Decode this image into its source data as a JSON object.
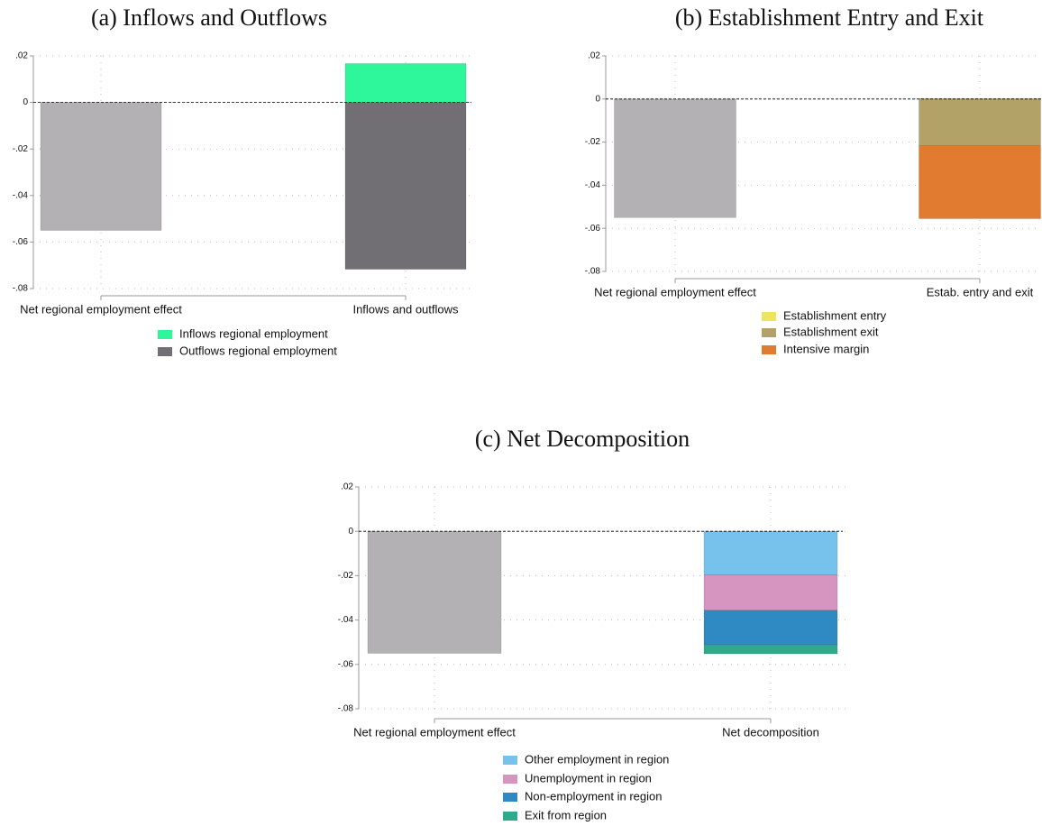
{
  "chart_data": [
    {
      "type": "bar",
      "title": "(a) Inflows and Outflows",
      "categories": [
        "Net regional employment effect",
        "Inflows and outflows"
      ],
      "series": [
        {
          "color": "#b3b1b4",
          "values": [
            -0.055,
            null
          ]
        },
        {
          "name": "Inflows regional employment",
          "color": "#2ef79b",
          "values": [
            null,
            0.0167
          ]
        },
        {
          "name": "Outflows regional employment",
          "color": "#716f73",
          "values": [
            null,
            -0.0717
          ]
        }
      ],
      "ylim": [
        -0.08,
        0.02
      ],
      "yticks": [
        {
          "value": -0.08,
          "label": "-.08"
        },
        {
          "value": -0.06,
          "label": "-.06"
        },
        {
          "value": -0.04,
          "label": "-.04"
        },
        {
          "value": -0.02,
          "label": "-.02"
        },
        0,
        {
          "value": 0.02,
          "label": ".02"
        }
      ],
      "grid": true,
      "legend": "bottom"
    },
    {
      "type": "bar",
      "title": "(b) Establishment Entry and Exit",
      "categories": [
        "Net regional employment effect",
        "Estab. entry and exit"
      ],
      "series": [
        {
          "color": "#b3b1b4",
          "values": [
            -0.055,
            null
          ]
        },
        {
          "name": "Establishment entry",
          "color": "#ede55a",
          "values": [
            null,
            0.0002
          ]
        },
        {
          "name": "Establishment exit",
          "color": "#b3a267",
          "values": [
            null,
            -0.0217
          ]
        },
        {
          "name": "Intensive margin",
          "color": "#e07b30",
          "values": [
            null,
            -0.0338
          ]
        }
      ],
      "ylim": [
        -0.08,
        0.02
      ],
      "yticks": [
        {
          "value": -0.08,
          "label": "-.08"
        },
        {
          "value": -0.06,
          "label": "-.06"
        },
        {
          "value": -0.04,
          "label": "-.04"
        },
        {
          "value": -0.02,
          "label": "-.02"
        },
        0,
        {
          "value": 0.02,
          "label": ".02"
        }
      ],
      "grid": true,
      "legend": "bottom"
    },
    {
      "type": "bar",
      "title": "(c) Net Decomposition",
      "categories": [
        "Net regional employment effect",
        "Net decomposition"
      ],
      "series": [
        {
          "color": "#b3b1b4",
          "values": [
            -0.055,
            null
          ]
        },
        {
          "name": "Other employment in region",
          "color": "#77c2ec",
          "values": [
            null,
            -0.0197
          ]
        },
        {
          "name": "Unemployment in region",
          "color": "#d695c0",
          "values": [
            null,
            -0.0159
          ]
        },
        {
          "name": "Non-employment in region",
          "color": "#2f8ac4",
          "values": [
            null,
            -0.0155
          ]
        },
        {
          "name": "Exit from region",
          "color": "#2fab8b",
          "values": [
            null,
            -0.0041
          ]
        }
      ],
      "ylim": [
        -0.08,
        0.02
      ],
      "yticks": [
        {
          "value": -0.08,
          "label": "-.08"
        },
        {
          "value": -0.06,
          "label": "-.06"
        },
        {
          "value": -0.04,
          "label": "-.04"
        },
        {
          "value": -0.02,
          "label": "-.02"
        },
        0,
        {
          "value": 0.02,
          "label": ".02"
        }
      ],
      "grid": true,
      "legend": "bottom"
    }
  ]
}
